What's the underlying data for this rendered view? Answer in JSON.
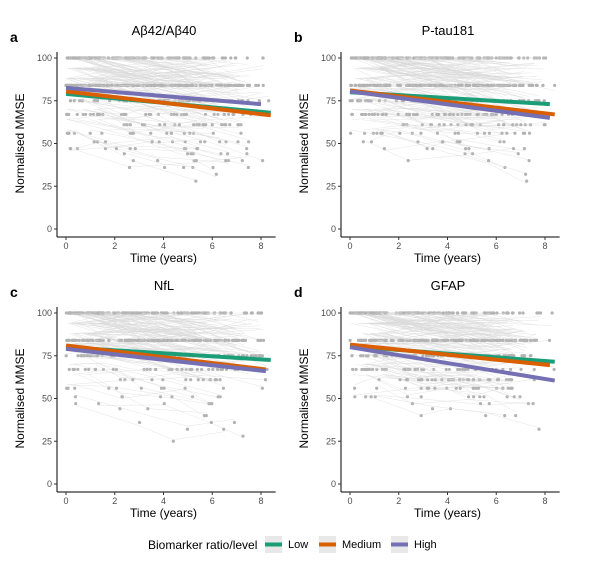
{
  "chart_data": [
    {
      "type": "line",
      "panel_label": "a",
      "title": "Aβ42/Aβ40",
      "xlabel": "Time (years)",
      "ylabel": "Normalised MMSE",
      "xlim": [
        0,
        8.6
      ],
      "ylim": [
        0,
        100
      ],
      "xticks": [
        "0",
        "2",
        "4",
        "6",
        "8"
      ],
      "yticks": [
        "0",
        "25",
        "50",
        "75",
        "100"
      ],
      "grid": false,
      "series": [
        {
          "name": "Low",
          "x": [
            0,
            8.4
          ],
          "y": [
            79,
            68
          ]
        },
        {
          "name": "Medium",
          "x": [
            0,
            8.4
          ],
          "y": [
            80.5,
            66.5
          ]
        },
        {
          "name": "High",
          "x": [
            0,
            8
          ],
          "y": [
            82.5,
            73
          ]
        }
      ]
    },
    {
      "type": "line",
      "panel_label": "b",
      "title": "P-tau181",
      "xlabel": "Time (years)",
      "ylabel": "Normalised MMSE",
      "xlim": [
        0,
        8.6
      ],
      "ylim": [
        0,
        100
      ],
      "xticks": [
        "0",
        "2",
        "4",
        "6",
        "8"
      ],
      "yticks": [
        "0",
        "25",
        "50",
        "75",
        "100"
      ],
      "grid": false,
      "series": [
        {
          "name": "Low",
          "x": [
            0,
            8.2
          ],
          "y": [
            80,
            73
          ]
        },
        {
          "name": "Medium",
          "x": [
            0,
            8.4
          ],
          "y": [
            81,
            67
          ]
        },
        {
          "name": "High",
          "x": [
            0,
            8.2
          ],
          "y": [
            80.5,
            65
          ]
        }
      ]
    },
    {
      "type": "line",
      "panel_label": "c",
      "title": "NfL",
      "xlabel": "Time (years)",
      "ylabel": "Normalised MMSE",
      "xlim": [
        0,
        8.6
      ],
      "ylim": [
        0,
        100
      ],
      "xticks": [
        "0",
        "2",
        "4",
        "6",
        "8"
      ],
      "yticks": [
        "0",
        "25",
        "50",
        "75",
        "100"
      ],
      "grid": false,
      "series": [
        {
          "name": "Low",
          "x": [
            0,
            8.4
          ],
          "y": [
            80,
            72.5
          ]
        },
        {
          "name": "Medium",
          "x": [
            0,
            8.2
          ],
          "y": [
            81,
            67
          ]
        },
        {
          "name": "High",
          "x": [
            0,
            8.2
          ],
          "y": [
            79,
            66
          ]
        }
      ]
    },
    {
      "type": "line",
      "panel_label": "d",
      "title": "GFAP",
      "xlabel": "Time (years)",
      "ylabel": "Normalised MMSE",
      "xlim": [
        0,
        8.6
      ],
      "ylim": [
        0,
        100
      ],
      "xticks": [
        "0",
        "2",
        "4",
        "6",
        "8"
      ],
      "yticks": [
        "0",
        "25",
        "50",
        "75",
        "100"
      ],
      "grid": false,
      "series": [
        {
          "name": "Low",
          "x": [
            0,
            8.4
          ],
          "y": [
            80.5,
            71.5
          ]
        },
        {
          "name": "Medium",
          "x": [
            0,
            8.2
          ],
          "y": [
            81.5,
            69.5
          ]
        },
        {
          "name": "High",
          "x": [
            0,
            8.4
          ],
          "y": [
            80,
            60.5
          ]
        }
      ]
    }
  ],
  "legend": {
    "title": "Biomarker ratio/level",
    "placement": "bottom",
    "items": [
      {
        "label": "Low",
        "color": "#1b9e77"
      },
      {
        "label": "Medium",
        "color": "#d95f02"
      },
      {
        "label": "High",
        "color": "#7570b3"
      }
    ]
  },
  "colors": {
    "points": "#b3b3b3",
    "spaghetti": "#d9d9d9"
  }
}
